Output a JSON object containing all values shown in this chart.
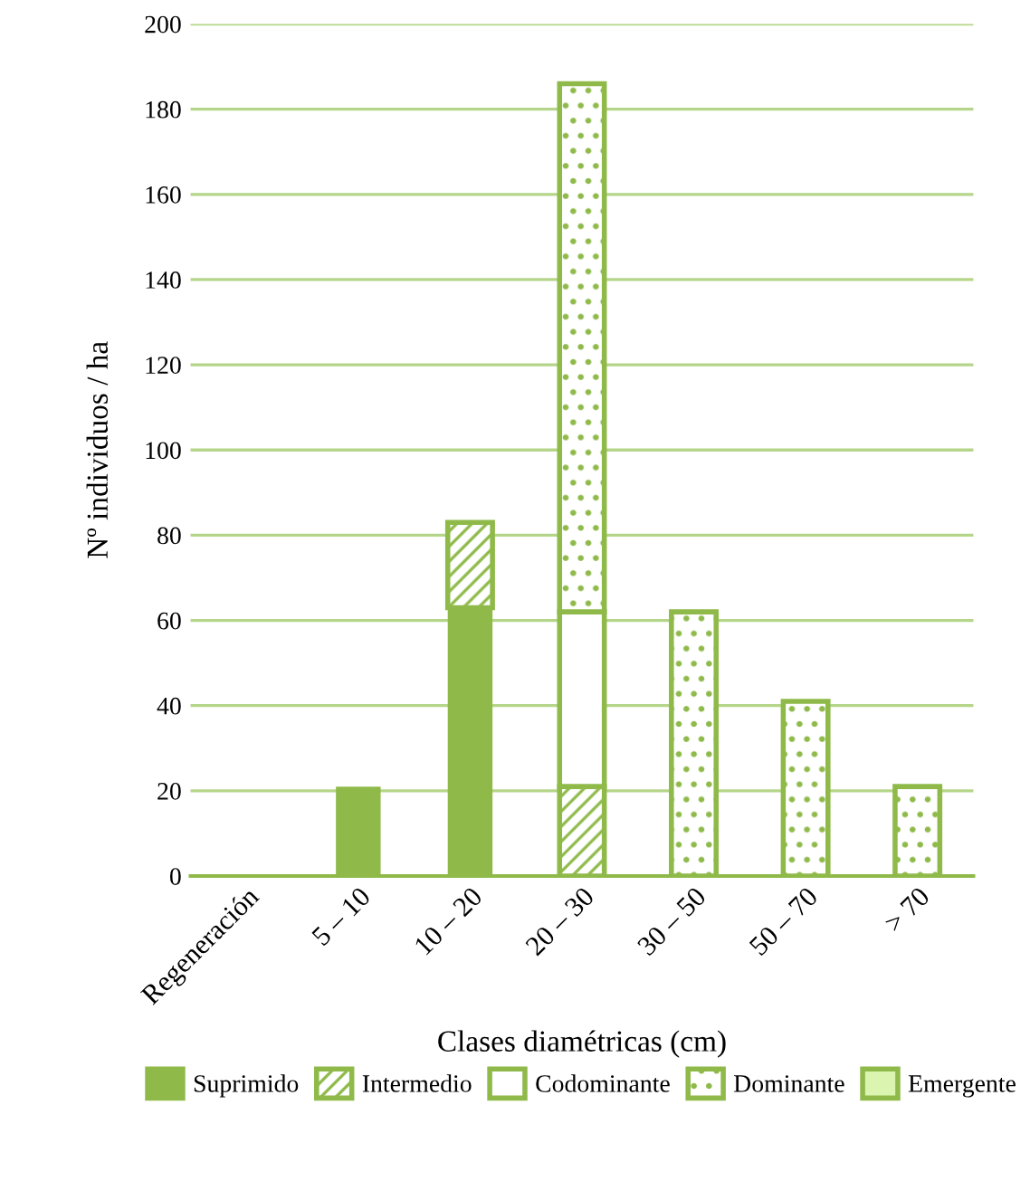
{
  "chart_data": {
    "type": "bar",
    "stacked": true,
    "xlabel": "Clases diamétricas (cm)",
    "ylabel": "Nº individuos / ha",
    "categories": [
      "Regeneración",
      "5 – 10",
      "10 – 20",
      "20 – 30",
      "30 – 50",
      "50 – 70",
      "> 70"
    ],
    "series": [
      {
        "name": "Suprimido",
        "color": "#8fba4a",
        "values": [
          null,
          21,
          63,
          null,
          null,
          null,
          null
        ]
      },
      {
        "name": "Intermedio",
        "color": "#8fba4a",
        "values": [
          null,
          null,
          20,
          21,
          null,
          null,
          null
        ]
      },
      {
        "name": "Codominante",
        "color": "#8fba4a",
        "values": [
          null,
          null,
          null,
          41,
          null,
          null,
          null
        ]
      },
      {
        "name": "Dominante",
        "color": "#8fba4a",
        "values": [
          null,
          null,
          null,
          124,
          62,
          41,
          21
        ]
      },
      {
        "name": "Emergente",
        "color": "#dbf5b0",
        "values": [
          null,
          null,
          null,
          null,
          null,
          null,
          null
        ]
      }
    ],
    "ylim": [
      0,
      200
    ],
    "yticks": [
      0,
      20,
      40,
      60,
      80,
      100,
      120,
      140,
      160,
      180,
      200
    ],
    "grid": "y",
    "legend": "bottom"
  }
}
